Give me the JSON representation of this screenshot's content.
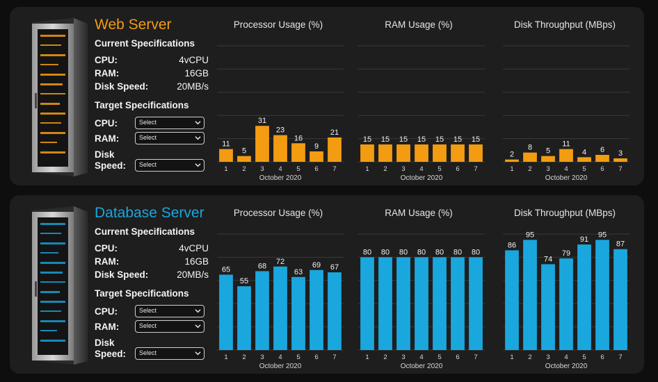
{
  "colors": {
    "web_accent": "#f39c12",
    "db_accent": "#1aa7de",
    "panel_bg": "#1e1e1e",
    "page_bg": "#0e0e0e"
  },
  "servers": [
    {
      "id": "web",
      "title": "Web Server",
      "current_heading": "Current Specifications",
      "current": [
        {
          "label": "CPU:",
          "value": "4vCPU"
        },
        {
          "label": "RAM:",
          "value": "16GB"
        },
        {
          "label": "Disk Speed:",
          "value": "20MB/s"
        }
      ],
      "target_heading": "Target Specifications",
      "target": [
        {
          "label": "CPU:",
          "select": "Select"
        },
        {
          "label": "RAM:",
          "select": "Select"
        },
        {
          "label_line1": "Disk",
          "label_line2": "Speed:",
          "select": "Select"
        }
      ]
    },
    {
      "id": "db",
      "title": "Database Server",
      "current_heading": "Current Specifications",
      "current": [
        {
          "label": "CPU:",
          "value": "4vCPU"
        },
        {
          "label": "RAM:",
          "value": "16GB"
        },
        {
          "label": "Disk Speed:",
          "value": "20MB/s"
        }
      ],
      "target_heading": "Target Specifications",
      "target": [
        {
          "label": "CPU:",
          "select": "Select"
        },
        {
          "label": "RAM:",
          "select": "Select"
        },
        {
          "label_line1": "Disk",
          "label_line2": "Speed:",
          "select": "Select"
        }
      ]
    }
  ],
  "chart_data": [
    {
      "id": "web-cpu",
      "server": "web",
      "type": "bar",
      "title": "Processor Usage (%)",
      "xlabel": "October 2020",
      "categories": [
        "1",
        "2",
        "3",
        "4",
        "5",
        "6",
        "7"
      ],
      "values": [
        11,
        5,
        31,
        23,
        16,
        9,
        21
      ],
      "ylim": [
        0,
        100
      ],
      "color": "#f39c12"
    },
    {
      "id": "web-ram",
      "server": "web",
      "type": "bar",
      "title": "RAM Usage (%)",
      "xlabel": "October 2020",
      "categories": [
        "1",
        "2",
        "3",
        "4",
        "5",
        "6",
        "7"
      ],
      "values": [
        15,
        15,
        15,
        15,
        15,
        15,
        15
      ],
      "ylim": [
        0,
        100
      ],
      "color": "#f39c12"
    },
    {
      "id": "web-disk",
      "server": "web",
      "type": "bar",
      "title": "Disk Throughput (MBps)",
      "xlabel": "October 2020",
      "categories": [
        "1",
        "2",
        "3",
        "4",
        "5",
        "6",
        "7"
      ],
      "values": [
        2,
        8,
        5,
        11,
        4,
        6,
        3
      ],
      "ylim": [
        0,
        100
      ],
      "color": "#f39c12"
    },
    {
      "id": "db-cpu",
      "server": "db",
      "type": "bar",
      "title": "Processor Usage (%)",
      "xlabel": "October 2020",
      "categories": [
        "1",
        "2",
        "3",
        "4",
        "5",
        "6",
        "7"
      ],
      "values": [
        65,
        55,
        68,
        72,
        63,
        69,
        67
      ],
      "ylim": [
        0,
        100
      ],
      "color": "#1aa7de"
    },
    {
      "id": "db-ram",
      "server": "db",
      "type": "bar",
      "title": "RAM Usage (%)",
      "xlabel": "October 2020",
      "categories": [
        "1",
        "2",
        "3",
        "4",
        "5",
        "6",
        "7"
      ],
      "values": [
        80,
        80,
        80,
        80,
        80,
        80,
        80
      ],
      "ylim": [
        0,
        100
      ],
      "color": "#1aa7de"
    },
    {
      "id": "db-disk",
      "server": "db",
      "type": "bar",
      "title": "Disk Throughput (MBps)",
      "xlabel": "October 2020",
      "categories": [
        "1",
        "2",
        "3",
        "4",
        "5",
        "6",
        "7"
      ],
      "values": [
        86,
        95,
        74,
        79,
        91,
        95,
        87
      ],
      "ylim": [
        0,
        100
      ],
      "color": "#1aa7de"
    }
  ]
}
